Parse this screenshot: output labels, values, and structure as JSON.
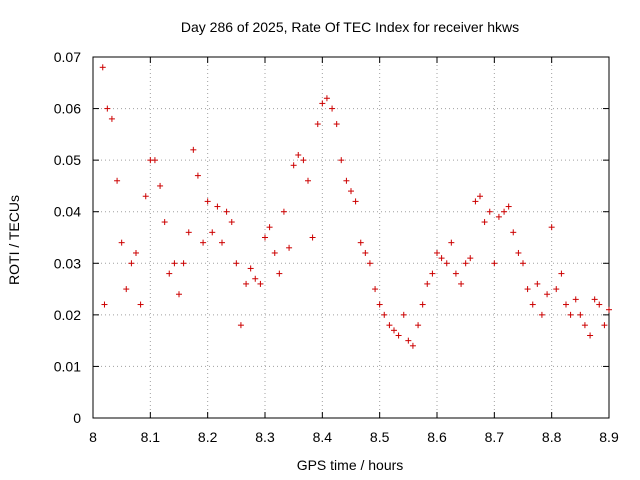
{
  "chart_data": {
    "type": "scatter",
    "title": "Day 286 of 2025, Rate Of TEC Index for receiver hkws",
    "xlabel": "GPS time / hours",
    "ylabel": "ROTI / TECUs",
    "xlim": [
      8.0,
      8.9
    ],
    "ylim": [
      0.0,
      0.07
    ],
    "xticks": [
      "8",
      "8.1",
      "8.2",
      "8.3",
      "8.4",
      "8.5",
      "8.6",
      "8.7",
      "8.8",
      "8.9"
    ],
    "yticks": [
      "0",
      "0.01",
      "0.02",
      "0.03",
      "0.04",
      "0.05",
      "0.06",
      "0.07"
    ],
    "grid": true,
    "marker": "+",
    "color": "#cc0000",
    "series": [
      {
        "name": "hkws",
        "x": [
          8.017,
          8.02,
          8.025,
          8.033,
          8.042,
          8.05,
          8.058,
          8.067,
          8.075,
          8.083,
          8.092,
          8.1,
          8.108,
          8.117,
          8.125,
          8.133,
          8.142,
          8.15,
          8.158,
          8.167,
          8.175,
          8.183,
          8.192,
          8.2,
          8.208,
          8.217,
          8.225,
          8.233,
          8.242,
          8.25,
          8.258,
          8.267,
          8.275,
          8.283,
          8.292,
          8.3,
          8.308,
          8.317,
          8.325,
          8.333,
          8.342,
          8.35,
          8.358,
          8.367,
          8.375,
          8.383,
          8.392,
          8.4,
          8.408,
          8.417,
          8.425,
          8.433,
          8.442,
          8.45,
          8.458,
          8.467,
          8.475,
          8.483,
          8.492,
          8.5,
          8.508,
          8.517,
          8.525,
          8.533,
          8.542,
          8.55,
          8.558,
          8.567,
          8.575,
          8.583,
          8.592,
          8.6,
          8.608,
          8.617,
          8.625,
          8.633,
          8.642,
          8.65,
          8.658,
          8.667,
          8.675,
          8.683,
          8.692,
          8.7,
          8.708,
          8.717,
          8.725,
          8.733,
          8.742,
          8.75,
          8.758,
          8.767,
          8.775,
          8.783,
          8.792,
          8.8,
          8.808,
          8.817,
          8.825,
          8.833,
          8.842,
          8.85,
          8.858,
          8.867,
          8.875,
          8.883,
          8.892,
          8.9
        ],
        "y": [
          0.068,
          0.022,
          0.06,
          0.058,
          0.046,
          0.034,
          0.025,
          0.03,
          0.032,
          0.022,
          0.043,
          0.05,
          0.05,
          0.045,
          0.038,
          0.028,
          0.03,
          0.024,
          0.03,
          0.036,
          0.052,
          0.047,
          0.034,
          0.042,
          0.036,
          0.041,
          0.034,
          0.04,
          0.038,
          0.03,
          0.018,
          0.026,
          0.029,
          0.027,
          0.026,
          0.035,
          0.037,
          0.032,
          0.028,
          0.04,
          0.033,
          0.049,
          0.051,
          0.05,
          0.046,
          0.035,
          0.057,
          0.061,
          0.062,
          0.06,
          0.057,
          0.05,
          0.046,
          0.044,
          0.042,
          0.034,
          0.032,
          0.03,
          0.025,
          0.022,
          0.02,
          0.018,
          0.017,
          0.016,
          0.02,
          0.015,
          0.014,
          0.018,
          0.022,
          0.026,
          0.028,
          0.032,
          0.031,
          0.03,
          0.034,
          0.028,
          0.026,
          0.03,
          0.031,
          0.042,
          0.043,
          0.038,
          0.04,
          0.03,
          0.039,
          0.04,
          0.041,
          0.036,
          0.032,
          0.03,
          0.025,
          0.022,
          0.026,
          0.02,
          0.024,
          0.037,
          0.025,
          0.028,
          0.022,
          0.02,
          0.023,
          0.02,
          0.018,
          0.016,
          0.023,
          0.022,
          0.018,
          0.021
        ]
      }
    ]
  }
}
